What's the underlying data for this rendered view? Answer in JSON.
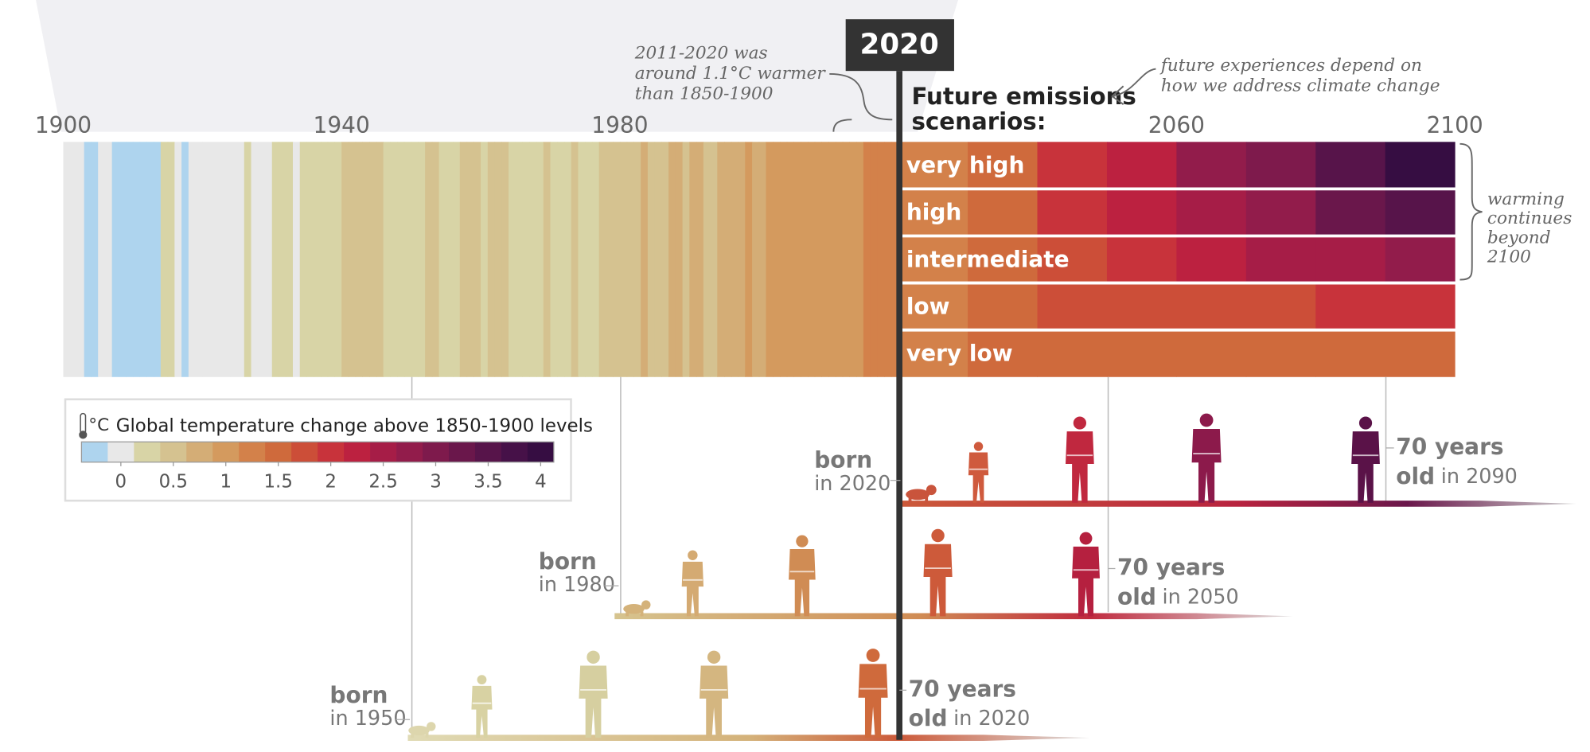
{
  "chart_data": {
    "type": "stripes",
    "xlim": [
      1900,
      2100
    ],
    "xticks": [
      1900,
      1940,
      1980,
      2060,
      2100
    ],
    "marker": 2020,
    "history": {
      "x": [
        1900,
        1901,
        1902,
        1903,
        1904,
        1905,
        1906,
        1907,
        1908,
        1909,
        1910,
        1911,
        1912,
        1913,
        1914,
        1915,
        1916,
        1917,
        1918,
        1919,
        1920,
        1921,
        1922,
        1923,
        1924,
        1925,
        1926,
        1927,
        1928,
        1929,
        1930,
        1931,
        1932,
        1933,
        1934,
        1935,
        1936,
        1937,
        1938,
        1939,
        1940,
        1941,
        1942,
        1943,
        1944,
        1945,
        1946,
        1947,
        1948,
        1949,
        1950,
        1951,
        1952,
        1953,
        1954,
        1955,
        1956,
        1957,
        1958,
        1959,
        1960,
        1961,
        1962,
        1963,
        1964,
        1965,
        1966,
        1967,
        1968,
        1969,
        1970,
        1971,
        1972,
        1973,
        1974,
        1975,
        1976,
        1977,
        1978,
        1979,
        1980,
        1981,
        1982,
        1983,
        1984,
        1985,
        1986,
        1987,
        1988,
        1989,
        1990,
        1991,
        1992,
        1993,
        1994,
        1995,
        1996,
        1997,
        1998,
        1999,
        2000,
        2001,
        2002,
        2003,
        2004,
        2005,
        2006,
        2007,
        2008,
        2009,
        2010,
        2011,
        2012,
        2013,
        2014,
        2015,
        2016,
        2017,
        2018,
        2019
      ],
      "values": [
        0.0,
        0.05,
        -0.05,
        -0.2,
        -0.3,
        0.0,
        0.05,
        -0.2,
        -0.25,
        -0.3,
        -0.25,
        -0.3,
        -0.2,
        -0.2,
        0.15,
        0.2,
        -0.05,
        -0.2,
        0.05,
        0.0,
        0.0,
        0.05,
        0.0,
        0.05,
        0.0,
        0.1,
        0.2,
        0.1,
        0.1,
        0.0,
        0.2,
        0.25,
        0.2,
        0.0,
        0.2,
        0.15,
        0.25,
        0.35,
        0.35,
        0.3,
        0.4,
        0.5,
        0.4,
        0.4,
        0.55,
        0.45,
        0.3,
        0.3,
        0.3,
        0.3,
        0.2,
        0.35,
        0.4,
        0.45,
        0.25,
        0.2,
        0.15,
        0.4,
        0.45,
        0.4,
        0.35,
        0.4,
        0.4,
        0.4,
        0.15,
        0.2,
        0.3,
        0.3,
        0.25,
        0.4,
        0.35,
        0.25,
        0.3,
        0.45,
        0.25,
        0.3,
        0.2,
        0.45,
        0.4,
        0.5,
        0.55,
        0.6,
        0.45,
        0.65,
        0.45,
        0.45,
        0.5,
        0.65,
        0.7,
        0.6,
        0.75,
        0.7,
        0.55,
        0.6,
        0.65,
        0.8,
        0.7,
        0.8,
        0.95,
        0.75,
        0.75,
        0.9,
        0.95,
        0.95,
        0.9,
        1.0,
        0.95,
        1.0,
        0.9,
        1.0,
        1.05,
        0.95,
        1.0,
        1.05,
        1.1,
        1.2,
        1.3,
        1.25,
        1.2,
        1.3
      ]
    },
    "scenarios_title": [
      "Future emissions",
      "scenarios:"
    ],
    "series": [
      {
        "name": "very high",
        "x": [
          2020,
          2030,
          2040,
          2050,
          2060,
          2070,
          2080,
          2090
        ],
        "values": [
          1.3,
          1.6,
          1.9,
          2.3,
          2.7,
          3.1,
          3.5,
          3.9
        ]
      },
      {
        "name": "high",
        "x": [
          2020,
          2030,
          2040,
          2050,
          2060,
          2070,
          2080,
          2090
        ],
        "values": [
          1.3,
          1.6,
          1.9,
          2.2,
          2.5,
          2.8,
          3.2,
          3.6
        ]
      },
      {
        "name": "intermediate",
        "x": [
          2020,
          2030,
          2040,
          2050,
          2060,
          2070,
          2080,
          2090
        ],
        "values": [
          1.3,
          1.5,
          1.8,
          2.0,
          2.2,
          2.4,
          2.6,
          2.8
        ]
      },
      {
        "name": "low",
        "x": [
          2020,
          2030,
          2040,
          2050,
          2060,
          2070,
          2080,
          2090
        ],
        "values": [
          1.3,
          1.5,
          1.7,
          1.8,
          1.8,
          1.8,
          1.9,
          1.9
        ]
      },
      {
        "name": "very low",
        "x": [
          2020,
          2030,
          2040,
          2050,
          2060,
          2070,
          2080,
          2090
        ],
        "values": [
          1.3,
          1.5,
          1.6,
          1.6,
          1.5,
          1.5,
          1.4,
          1.4
        ]
      }
    ],
    "colorbar": {
      "unit": "°C",
      "title": "Global temperature change above 1850-1900 levels",
      "clim": [
        -0.375,
        4.125
      ],
      "ticks": [
        0,
        0.5,
        1,
        1.5,
        2,
        2.5,
        3,
        3.5,
        4
      ],
      "colors": [
        "#aed4ee",
        "#e8e8e8",
        "#d8d4a6",
        "#d5c290",
        "#d4ad76",
        "#d49a5e",
        "#d3814a",
        "#cf6a3c",
        "#cc4e38",
        "#c8333b",
        "#bc2140",
        "#a61d47",
        "#921c4b",
        "#7e1a4c",
        "#6a174b",
        "#57144a",
        "#461148",
        "#360d42"
      ]
    },
    "annotations": {
      "recent": [
        "2011-2020 was",
        "around 1.1°C warmer",
        "than 1850-1900"
      ],
      "future": [
        "future experiences depend on",
        "how we address climate change"
      ],
      "beyond": [
        "warming",
        "continues",
        "beyond",
        "2100"
      ]
    },
    "generations": [
      {
        "born": "born",
        "born_year": "in 2020",
        "age": "70 years",
        "old": "old",
        "old_year": "in 2090"
      },
      {
        "born": "born",
        "born_year": "in 1980",
        "age": "70 years",
        "old": "old",
        "old_year": "in 2050"
      },
      {
        "born": "born",
        "born_year": "in 1950",
        "age": "70 years",
        "old": "old",
        "old_year": "in 2020"
      }
    ]
  }
}
